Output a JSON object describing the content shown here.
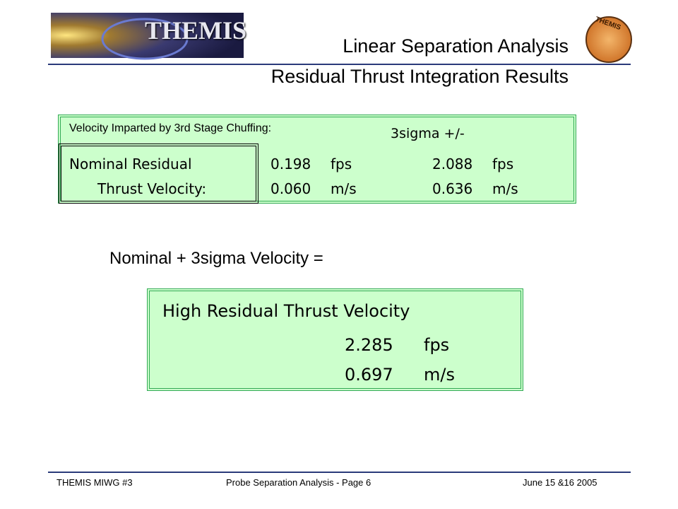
{
  "header": {
    "logo_text": "THEMIS",
    "seal_text": "THEMIS",
    "title": "Linear Separation Analysis",
    "subtitle": "Residual Thrust Integration Results"
  },
  "velocity_box": {
    "label": "Velocity Imparted by 3rd Stage Chuffing:",
    "column_header": "3sigma +/-",
    "row_label": [
      "Nominal Residual",
      "Thrust Velocity:"
    ],
    "rows": [
      [
        "0.198",
        "fps",
        "2.088",
        "fps"
      ],
      [
        "0.060",
        "m/s",
        "0.636",
        "m/s"
      ]
    ]
  },
  "sum_label": "Nominal + 3sigma Velocity =",
  "result_box": {
    "title": "High Residual Thrust Velocity",
    "rows": [
      [
        "2.285",
        "fps"
      ],
      [
        "0.697",
        "m/s"
      ]
    ]
  },
  "footer": {
    "left": "THEMIS MIWG #3",
    "center": "Probe Separation Analysis - Page 6",
    "right": "June 15 &16 2005"
  }
}
